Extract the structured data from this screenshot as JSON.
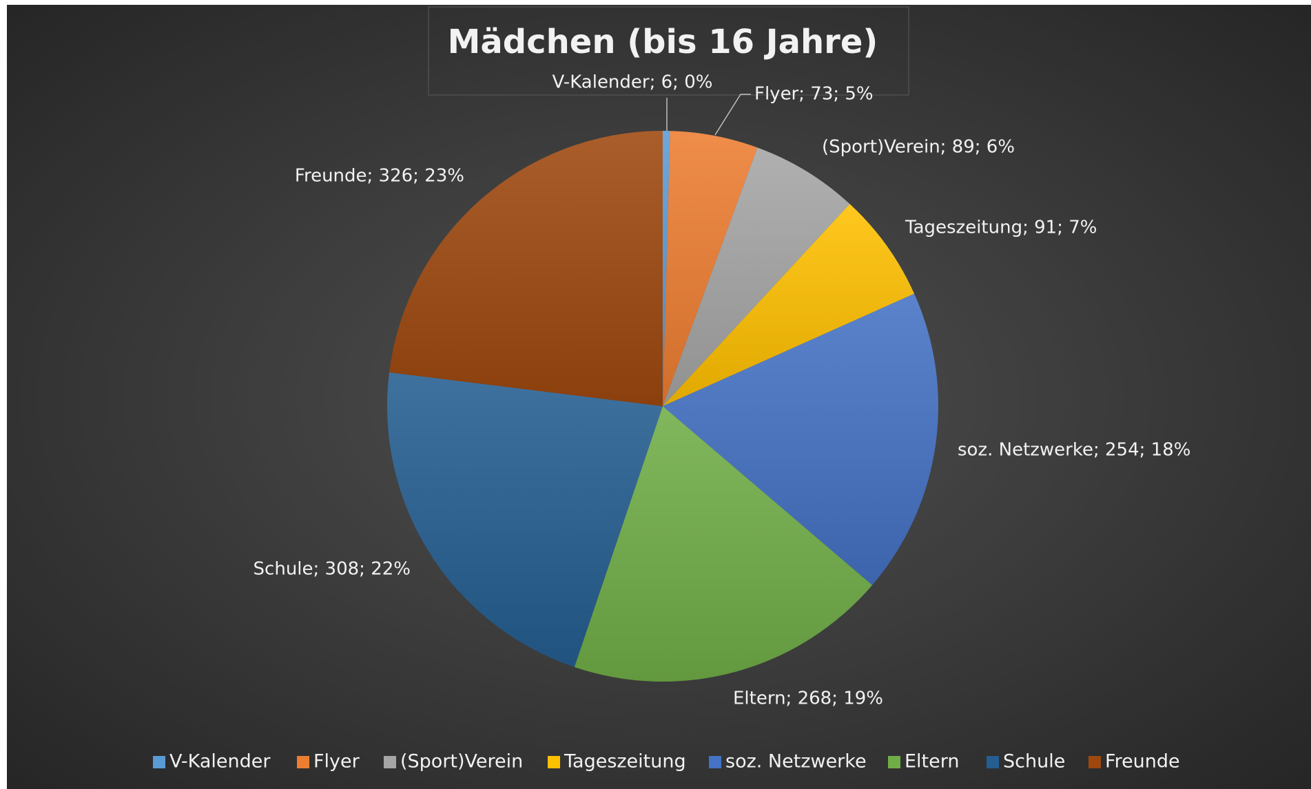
{
  "chart_data": {
    "type": "pie",
    "title": "Mädchen (bis 16 Jahre)",
    "categories": [
      "V-Kalender",
      "Flyer",
      "(Sport)Verein",
      "Tageszeitung",
      "soz. Netzwerke",
      "Eltern",
      "Schule",
      "Freunde"
    ],
    "values": [
      6,
      73,
      89,
      91,
      254,
      268,
      308,
      326
    ],
    "value_labels": [
      "V-Kalender; 6; 0%",
      "Flyer; 73; 5%",
      "(Sport)Verein; 89; 6%",
      "Tageszeitung; 91; 7%",
      "soz. Netzwerke; 254; 18%",
      "Eltern; 268; 19%",
      "Schule; 308; 22%",
      "Freunde; 326; 23%"
    ],
    "colors": [
      "#5b9bd5",
      "#ed7d31",
      "#a5a5a5",
      "#ffc000",
      "#4472c4",
      "#70ad47",
      "#255e91",
      "#9e480e"
    ],
    "legend": "bottom"
  }
}
